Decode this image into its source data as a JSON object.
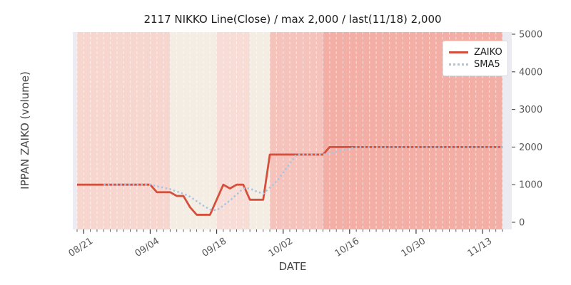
{
  "title": "2117 NIKKO Line(Close) / max 2,000 / last(11/18) 2,000",
  "chart_data": {
    "type": "line",
    "title": "2117 NIKKO Line(Close) / max 2,000 / last(11/18) 2,000",
    "xlabel": "DATE",
    "ylabel": "IPPAN ZAIKO (volume)",
    "ylim": [
      0,
      5000
    ],
    "y_ticks": [
      0,
      1000,
      2000,
      3000,
      4000,
      5000
    ],
    "x_tick_labels": [
      "08/21",
      "09/04",
      "09/18",
      "10/02",
      "10/16",
      "10/30",
      "11/13"
    ],
    "x_tick_dates": [
      "08/21",
      "09/04",
      "09/18",
      "10/02",
      "10/16",
      "10/30",
      "11/13"
    ],
    "grid": "vertical white dashed line per trading day",
    "legend_position": "upper right",
    "plot_bg": "#ebebf1",
    "dates": [
      "08/20",
      "08/21",
      "08/22",
      "08/25",
      "08/26",
      "08/27",
      "08/28",
      "08/29",
      "09/01",
      "09/02",
      "09/03",
      "09/04",
      "09/05",
      "09/08",
      "09/09",
      "09/10",
      "09/11",
      "09/12",
      "09/15",
      "09/16",
      "09/17",
      "09/18",
      "09/19",
      "09/22",
      "09/23",
      "09/24",
      "09/25",
      "09/26",
      "09/29",
      "09/30",
      "10/01",
      "10/02",
      "10/03",
      "10/06",
      "10/07",
      "10/08",
      "10/09",
      "10/10",
      "10/13",
      "10/14",
      "10/15",
      "10/16",
      "10/17",
      "10/20",
      "10/21",
      "10/22",
      "10/23",
      "10/24",
      "10/27",
      "10/28",
      "10/29",
      "10/30",
      "10/31",
      "11/03",
      "11/04",
      "11/05",
      "11/06",
      "11/07",
      "11/10",
      "11/11",
      "11/12",
      "11/13",
      "11/14",
      "11/17",
      "11/18"
    ],
    "series": [
      {
        "name": "ZAIKO",
        "color": "#d5503c",
        "style": "solid",
        "values": [
          1000,
          1000,
          1000,
          1000,
          1000,
          1000,
          1000,
          1000,
          1000,
          1000,
          1000,
          1000,
          800,
          800,
          800,
          700,
          700,
          400,
          200,
          200,
          200,
          600,
          1000,
          900,
          1000,
          1000,
          600,
          600,
          600,
          1800,
          1800,
          1800,
          1800,
          1800,
          1800,
          1800,
          1800,
          1800,
          2000,
          2000,
          2000,
          2000,
          2000,
          2000,
          2000,
          2000,
          2000,
          2000,
          2000,
          2000,
          2000,
          2000,
          2000,
          2000,
          2000,
          2000,
          2000,
          2000,
          2000,
          2000,
          2000,
          2000,
          2000,
          2000,
          2000
        ]
      },
      {
        "name": "SMA5",
        "color": "#a9c5e2",
        "style": "dotted",
        "values": [
          null,
          null,
          null,
          null,
          1000,
          1000,
          1000,
          1000,
          1000,
          1000,
          1000,
          1000,
          960,
          920,
          880,
          820,
          760,
          680,
          560,
          440,
          340,
          320,
          440,
          580,
          740,
          900,
          900,
          820,
          760,
          920,
          1080,
          1320,
          1560,
          1800,
          1800,
          1800,
          1800,
          1800,
          1840,
          1880,
          1920,
          1960,
          2000,
          2000,
          2000,
          2000,
          2000,
          2000,
          2000,
          2000,
          2000,
          2000,
          2000,
          2000,
          2000,
          2000,
          2000,
          2000,
          2000,
          2000,
          2000,
          2000,
          2000,
          2000,
          2000
        ]
      }
    ],
    "background_bands": [
      {
        "from": "08/20",
        "to": "09/09",
        "color": "#f6d6cf"
      },
      {
        "from": "09/09",
        "to": "09/18",
        "color": "#f3ede3"
      },
      {
        "from": "09/18",
        "to": "09/25",
        "color": "#f8dcd6"
      },
      {
        "from": "09/25",
        "to": "09/30",
        "color": "#f3ede3"
      },
      {
        "from": "09/30",
        "to": "10/10",
        "color": "#f5c3bb"
      },
      {
        "from": "10/10",
        "to": "11/18",
        "color": "#f3aea6"
      }
    ],
    "max_value": 2000,
    "last_date": "11/18",
    "last_value": 2000
  },
  "legend": {
    "items": [
      {
        "label": "ZAIKO"
      },
      {
        "label": "SMA5"
      }
    ]
  }
}
